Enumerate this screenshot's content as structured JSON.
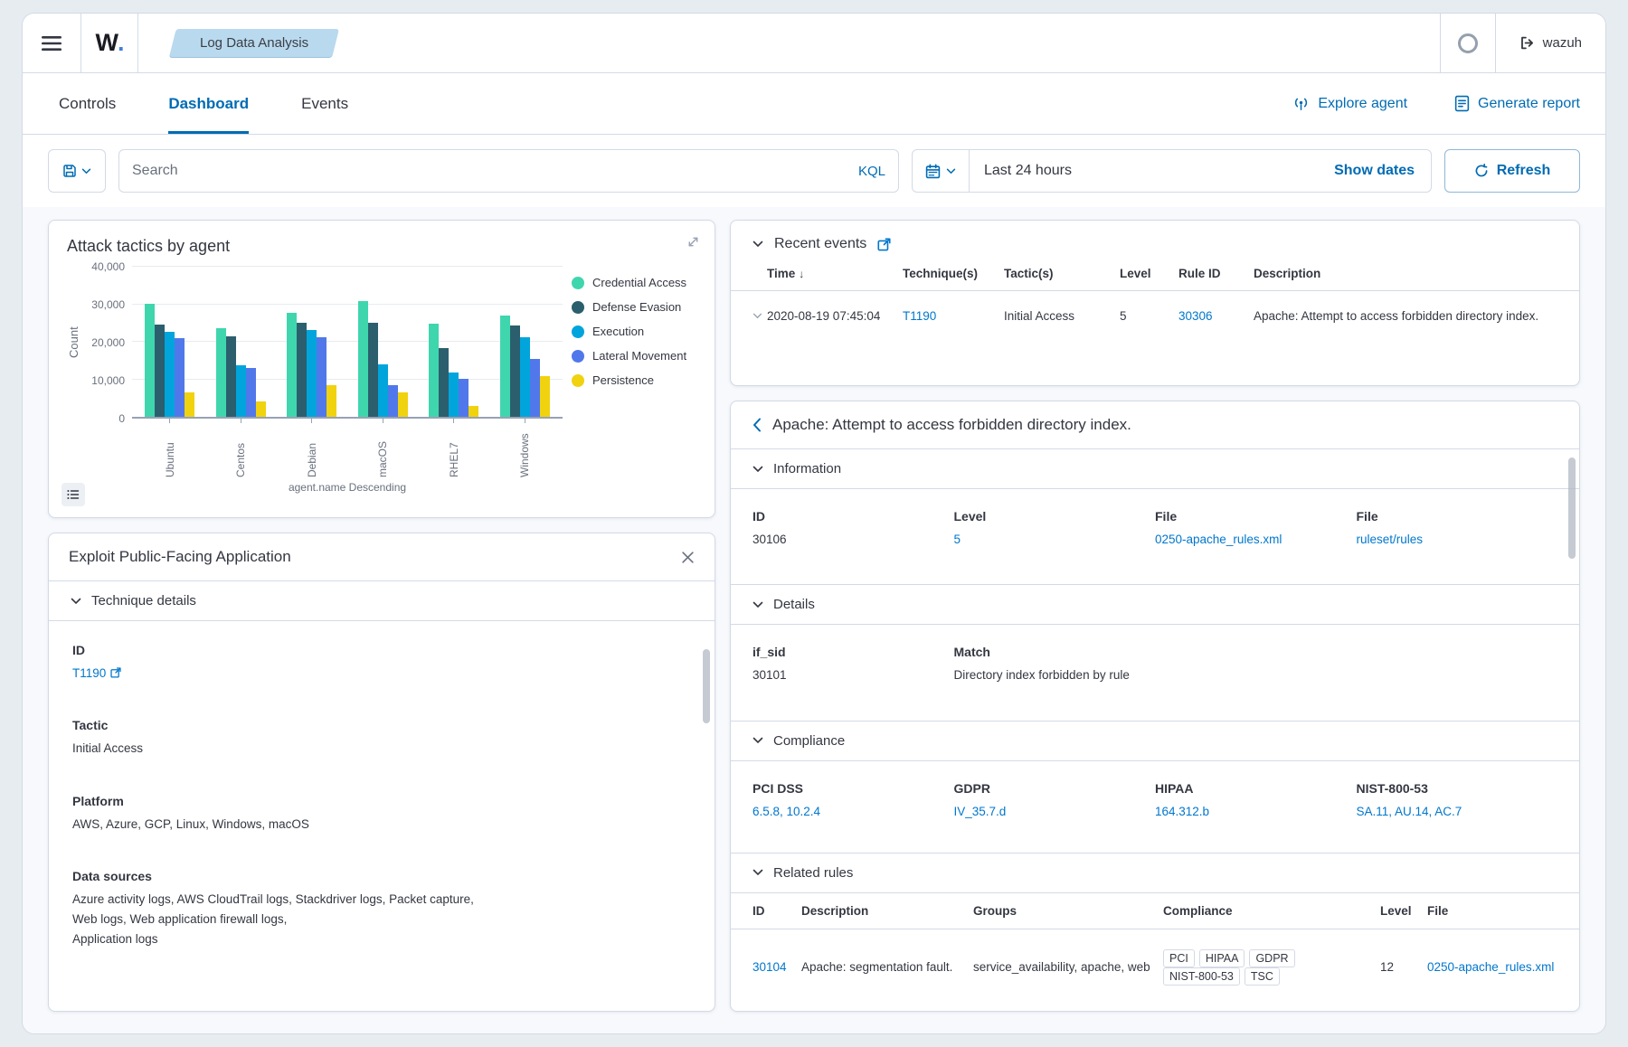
{
  "app": {
    "logo": "W",
    "logo_dot": ".",
    "breadcrumb": "Log Data Analysis",
    "user_button": "wazuh"
  },
  "tabs": {
    "items": [
      "Controls",
      "Dashboard",
      "Events"
    ],
    "active": "Dashboard"
  },
  "header_actions": {
    "explore_agent": "Explore agent",
    "generate_report": "Generate report"
  },
  "search_bar": {
    "placeholder": "Search",
    "kql_label": "KQL",
    "time_range": "Last 24 hours",
    "show_dates_label": "Show dates",
    "refresh_label": "Refresh"
  },
  "colors": {
    "primary": "#006BB4",
    "link": "#0077CC",
    "breadcrumb_bg": "#b9d9ee"
  },
  "chart_data": {
    "type": "bar",
    "title": "Attack tactics by agent",
    "categories": [
      "Ubuntu",
      "Centos",
      "Debian",
      "macOS",
      "RHEL7",
      "Windows"
    ],
    "series": [
      {
        "name": "Credential Access",
        "color": "#3fd6ae",
        "values": [
          30200,
          23600,
          27600,
          30900,
          24900,
          27100
        ]
      },
      {
        "name": "Defense Evasion",
        "color": "#2b5f6d",
        "values": [
          24600,
          21500,
          25000,
          25000,
          18400,
          24400
        ]
      },
      {
        "name": "Execution",
        "color": "#01a5dc",
        "values": [
          22600,
          13800,
          23100,
          13900,
          11800,
          21200
        ]
      },
      {
        "name": "Lateral Movement",
        "color": "#5178ea",
        "values": [
          20900,
          13100,
          21100,
          8500,
          10100,
          15400
        ]
      },
      {
        "name": "Persistence",
        "color": "#f0d20f",
        "values": [
          6400,
          4000,
          8500,
          6600,
          3000,
          10900
        ]
      }
    ],
    "xlabel": "agent.name Descending",
    "ylabel": "Count",
    "ylim": [
      0,
      40000
    ],
    "ytick_labels": [
      "0",
      "10,000",
      "20,000",
      "30,000",
      "40,000"
    ],
    "legend_position": "right",
    "grid": true
  },
  "technique_panel": {
    "title": "Exploit Public-Facing Application",
    "section_title": "Technique details",
    "fields": [
      {
        "label": "ID",
        "value": "T1190",
        "link": true,
        "external": true
      },
      {
        "label": "Tactic",
        "value": "Initial Access"
      },
      {
        "label": "Platform",
        "value": "AWS, Azure, GCP, Linux, Windows, macOS"
      },
      {
        "label": "Data sources",
        "lines": [
          "Azure activity logs, AWS CloudTrail logs, Stackdriver logs, Packet capture,",
          "Web logs, Web application firewall logs,",
          "Application logs"
        ]
      }
    ]
  },
  "recent_events": {
    "title": "Recent events",
    "columns": [
      "Time",
      "Technique(s)",
      "Tactic(s)",
      "Level",
      "Rule ID",
      "Description"
    ],
    "sort_column": "Time",
    "rows": [
      {
        "time": "2020-08-19 07:45:04",
        "technique": "T1190",
        "tactic": "Initial Access",
        "level": "5",
        "rule_id": "30306",
        "description": "Apache: Attempt to access forbidden directory index."
      }
    ]
  },
  "rule_detail": {
    "title": "Apache: Attempt to access forbidden directory index.",
    "information": {
      "title": "Information",
      "fields": [
        {
          "label": "ID",
          "value": "30106"
        },
        {
          "label": "Level",
          "value": "5",
          "link": true
        },
        {
          "label": "File",
          "value": "0250-apache_rules.xml",
          "link": true
        },
        {
          "label": "File",
          "value": "ruleset/rules",
          "link": true
        }
      ]
    },
    "details": {
      "title": "Details",
      "fields": [
        {
          "label": "if_sid",
          "value": "30101"
        },
        {
          "label": "Match",
          "value": "Directory index forbidden by rule"
        }
      ]
    },
    "compliance": {
      "title": "Compliance",
      "fields": [
        {
          "label": "PCI DSS",
          "value": "6.5.8, 10.2.4",
          "link": true
        },
        {
          "label": "GDPR",
          "value": "IV_35.7.d",
          "link": true
        },
        {
          "label": "HIPAA",
          "value": "164.312.b",
          "link": true
        },
        {
          "label": "NIST-800-53",
          "value": "SA.11, AU.14, AC.7",
          "link": true
        }
      ]
    },
    "related_rules": {
      "title": "Related rules",
      "columns": [
        "ID",
        "Description",
        "Groups",
        "Compliance",
        "Level",
        "File"
      ],
      "rows": [
        {
          "id": "30104",
          "description": "Apache: segmentation fault.",
          "groups": "service_availability, apache, web",
          "compliance": [
            "PCI",
            "HIPAA",
            "GDPR",
            "NIST-800-53",
            "TSC"
          ],
          "level": "12",
          "file": "0250-apache_rules.xml"
        }
      ]
    }
  }
}
